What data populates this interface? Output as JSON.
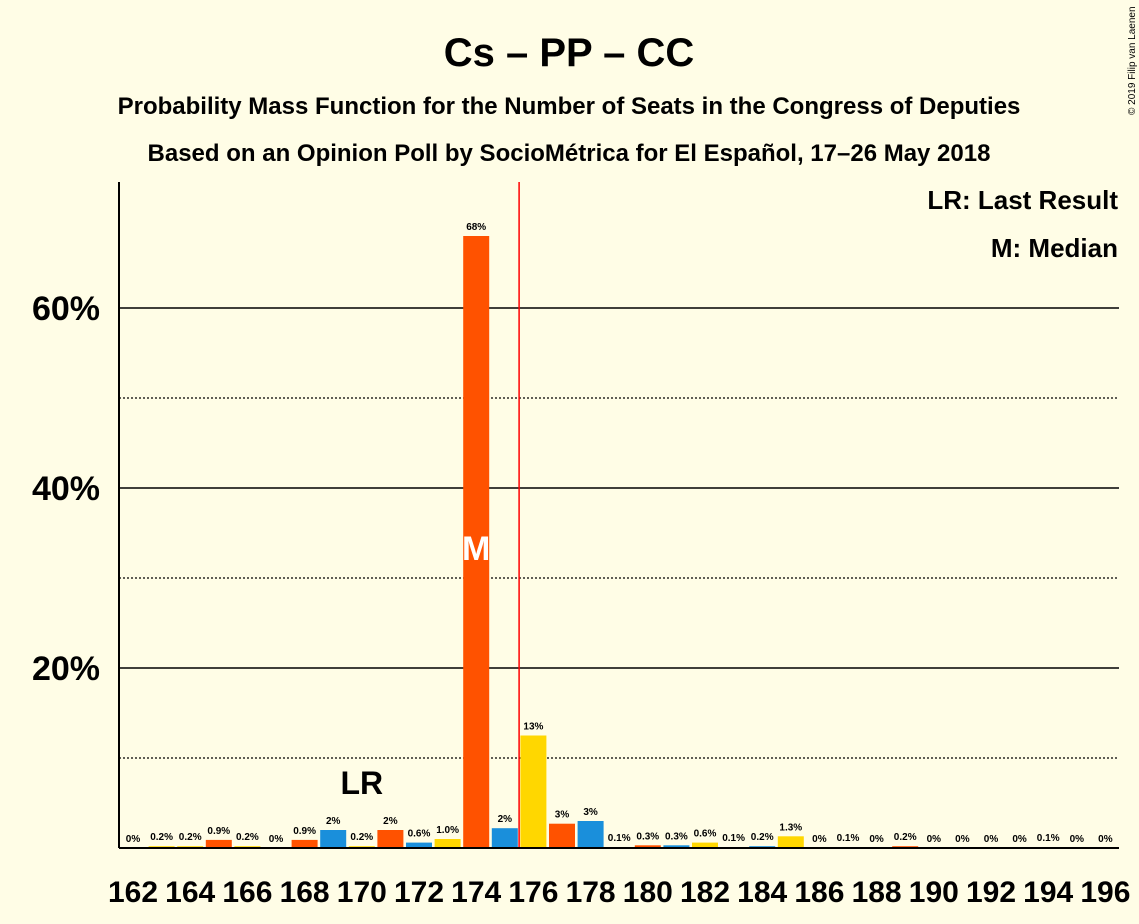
{
  "title": "Cs – PP – CC",
  "subtitle1": "Probability Mass Function for the Number of Seats in the Congress of Deputies",
  "subtitle2": "Based on an Opinion Poll by SocioMétrica for El Español, 17–26 May 2018",
  "copyright": "© 2019 Filip van Laenen",
  "legend": {
    "lr": "LR: Last Result",
    "m": "M: Median"
  },
  "markers": {
    "lr_text": "LR",
    "m_text": "M",
    "last_result_seat": 170,
    "median_seat": 174,
    "majority_line_seat": 175.5
  },
  "colors": {
    "background": "#FFFDE6",
    "cs": "#FF5200",
    "pp": "#1A8FDB",
    "cc": "#FFD700",
    "majority_line": "#FF0000"
  },
  "chart_data": {
    "type": "bar",
    "ylim": [
      0,
      74
    ],
    "yticks": [
      {
        "value": 20,
        "label": "20%"
      },
      {
        "value": 40,
        "label": "40%"
      },
      {
        "value": 60,
        "label": "60%"
      }
    ],
    "xticks": [
      "162",
      "164",
      "166",
      "168",
      "170",
      "172",
      "174",
      "176",
      "178",
      "180",
      "182",
      "184",
      "186",
      "188",
      "190",
      "192",
      "194",
      "196"
    ],
    "bars": [
      {
        "seat": 162,
        "value": 0,
        "label": "0%",
        "party": "cs"
      },
      {
        "seat": 163,
        "value": 0.2,
        "label": "0.2%",
        "party": "cc"
      },
      {
        "seat": 164,
        "value": 0.2,
        "label": "0.2%",
        "party": "cc"
      },
      {
        "seat": 165,
        "value": 0.9,
        "label": "0.9%",
        "party": "cs"
      },
      {
        "seat": 166,
        "value": 0.2,
        "label": "0.2%",
        "party": "cc"
      },
      {
        "seat": 167,
        "value": 0,
        "label": "0%",
        "party": "cs"
      },
      {
        "seat": 168,
        "value": 0.9,
        "label": "0.9%",
        "party": "cs"
      },
      {
        "seat": 169,
        "value": 2,
        "label": "2%",
        "party": "pp"
      },
      {
        "seat": 170,
        "value": 0.2,
        "label": "0.2%",
        "party": "cc"
      },
      {
        "seat": 171,
        "value": 2,
        "label": "2%",
        "party": "cs"
      },
      {
        "seat": 172,
        "value": 0.6,
        "label": "0.6%",
        "party": "pp"
      },
      {
        "seat": 173,
        "value": 1.0,
        "label": "1.0%",
        "party": "cc"
      },
      {
        "seat": 174,
        "value": 68,
        "label": "68%",
        "party": "cs"
      },
      {
        "seat": 175,
        "value": 2.2,
        "label": "2%",
        "party": "pp"
      },
      {
        "seat": 176,
        "value": 12.5,
        "label": "13%",
        "party": "cc"
      },
      {
        "seat": 177,
        "value": 2.7,
        "label": "3%",
        "party": "cs"
      },
      {
        "seat": 178,
        "value": 3.0,
        "label": "3%",
        "party": "pp"
      },
      {
        "seat": 179,
        "value": 0.1,
        "label": "0.1%",
        "party": "cc"
      },
      {
        "seat": 180,
        "value": 0.3,
        "label": "0.3%",
        "party": "cs"
      },
      {
        "seat": 181,
        "value": 0.3,
        "label": "0.3%",
        "party": "pp"
      },
      {
        "seat": 182,
        "value": 0.6,
        "label": "0.6%",
        "party": "cc"
      },
      {
        "seat": 183,
        "value": 0.1,
        "label": "0.1%",
        "party": "cs"
      },
      {
        "seat": 184,
        "value": 0.2,
        "label": "0.2%",
        "party": "pp"
      },
      {
        "seat": 185,
        "value": 1.3,
        "label": "1.3%",
        "party": "cc"
      },
      {
        "seat": 186,
        "value": 0,
        "label": "0%",
        "party": "cs"
      },
      {
        "seat": 187,
        "value": 0.1,
        "label": "0.1%",
        "party": "pp"
      },
      {
        "seat": 188,
        "value": 0,
        "label": "0%",
        "party": "cc"
      },
      {
        "seat": 189,
        "value": 0.2,
        "label": "0.2%",
        "party": "cs"
      },
      {
        "seat": 190,
        "value": 0,
        "label": "0%",
        "party": "pp"
      },
      {
        "seat": 191,
        "value": 0,
        "label": "0%",
        "party": "cc"
      },
      {
        "seat": 192,
        "value": 0,
        "label": "0%",
        "party": "cs"
      },
      {
        "seat": 193,
        "value": 0,
        "label": "0%",
        "party": "pp"
      },
      {
        "seat": 194,
        "value": 0.1,
        "label": "0.1%",
        "party": "cc"
      },
      {
        "seat": 195,
        "value": 0,
        "label": "0%",
        "party": "cs"
      },
      {
        "seat": 196,
        "value": 0,
        "label": "0%",
        "party": "pp"
      }
    ]
  }
}
